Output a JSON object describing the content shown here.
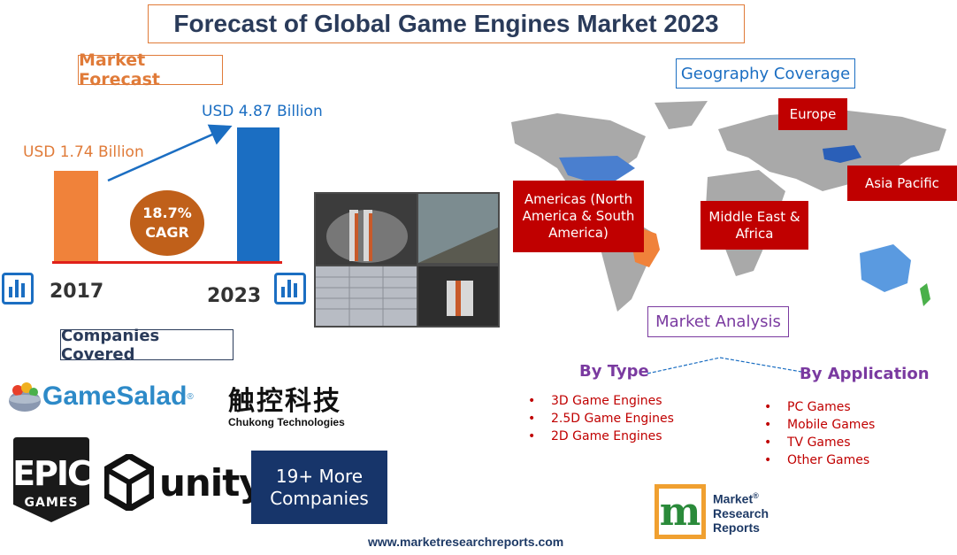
{
  "title": "Forecast of Global Game Engines Market 2023",
  "market_forecast": {
    "heading": "Market Forecast",
    "value_2017": "USD 1.74 Billion",
    "value_2023": "USD 4.87 Billion",
    "cagr_value": "18.7%",
    "cagr_label": "CAGR",
    "year_start": "2017",
    "year_end": "2023"
  },
  "chart_data": {
    "type": "bar",
    "categories": [
      "2017",
      "2023"
    ],
    "values": [
      1.74,
      4.87
    ],
    "title": "",
    "xlabel": "",
    "ylabel": "",
    "colors": [
      "#f0823a",
      "#1b6ec2"
    ]
  },
  "companies": {
    "heading": "Companies Covered",
    "gamesalad": "GameSalad",
    "gamesalad_mark": "®",
    "chukong_cn": "触控科技",
    "chukong_en": "Chukong Technologies",
    "epic_line1": "EPIC",
    "epic_line2": "GAMES",
    "unity": "unity",
    "more_line1": "19+ More",
    "more_line2": "Companies"
  },
  "geography": {
    "heading": "Geography Coverage",
    "europe": "Europe",
    "americas_line1": "Americas (North",
    "americas_line2": "America & South",
    "americas_line3": "America)",
    "mea_line1": "Middle East &",
    "mea_line2": "Africa",
    "apac": "Asia Pacific"
  },
  "analysis": {
    "heading": "Market Analysis",
    "by_type": "By Type",
    "by_application": "By Application",
    "types": [
      "3D Game Engines",
      "2.5D Game Engines",
      "2D Game Engines"
    ],
    "applications": [
      "PC Games",
      "Mobile Games",
      "TV Games",
      "Other Games"
    ]
  },
  "brand": {
    "logo_letter": "m",
    "line1": "Market",
    "line2": "Research",
    "line3": "Reports",
    "mark": "®",
    "website": "www.marketresearchreports.com"
  },
  "colors": {
    "accent_orange": "#f0823a",
    "accent_blue": "#1b6ec2",
    "region_red": "#c00000",
    "navy": "#17356a",
    "purple": "#7a3aa0"
  }
}
